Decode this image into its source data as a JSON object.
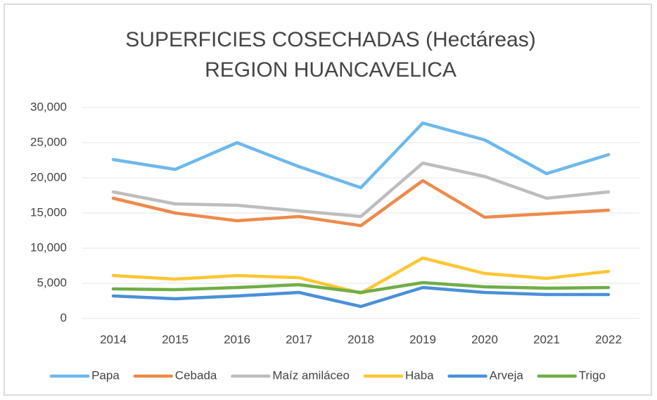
{
  "chart_data": {
    "type": "line",
    "title": "SUPERFICIES COSECHADAS (Hectáreas)",
    "subtitle": "REGION HUANCAVELICA",
    "categories": [
      "2014",
      "2015",
      "2016",
      "2017",
      "2018",
      "2019",
      "2020",
      "2021",
      "2022"
    ],
    "series": [
      {
        "name": "Papa",
        "color": "#6cb8ec",
        "values": [
          22600,
          21200,
          25000,
          21600,
          18600,
          27800,
          25400,
          20600,
          23300
        ]
      },
      {
        "name": "Cebada",
        "color": "#ee8a4a",
        "values": [
          17100,
          15000,
          13900,
          14500,
          13200,
          19600,
          14400,
          14900,
          15400
        ]
      },
      {
        "name": "Maíz amiláceo",
        "color": "#bdbdbd",
        "values": [
          18000,
          16300,
          16100,
          15300,
          14500,
          22100,
          20200,
          17100,
          18000
        ]
      },
      {
        "name": "Haba",
        "color": "#ffc533",
        "values": [
          6100,
          5600,
          6100,
          5800,
          3600,
          8600,
          6400,
          5700,
          6700
        ]
      },
      {
        "name": "Arveja",
        "color": "#4a90d9",
        "values": [
          3200,
          2800,
          3200,
          3700,
          1700,
          4400,
          3700,
          3400,
          3400
        ]
      },
      {
        "name": "Trigo",
        "color": "#70ad47",
        "values": [
          4200,
          4100,
          4400,
          4800,
          3700,
          5100,
          4500,
          4300,
          4400
        ]
      }
    ],
    "ylim": [
      0,
      30000
    ],
    "yticks": [
      0,
      {
        "value": 5000,
        "label": "5,000"
      },
      {
        "value": 10000,
        "label": "10,000"
      },
      {
        "value": 15000,
        "label": "15,000"
      },
      {
        "value": 20000,
        "label": "20,000"
      },
      {
        "value": 25000,
        "label": "25,000"
      },
      {
        "value": 30000,
        "label": "30,000"
      }
    ],
    "grid": true,
    "legend": "bottom"
  }
}
